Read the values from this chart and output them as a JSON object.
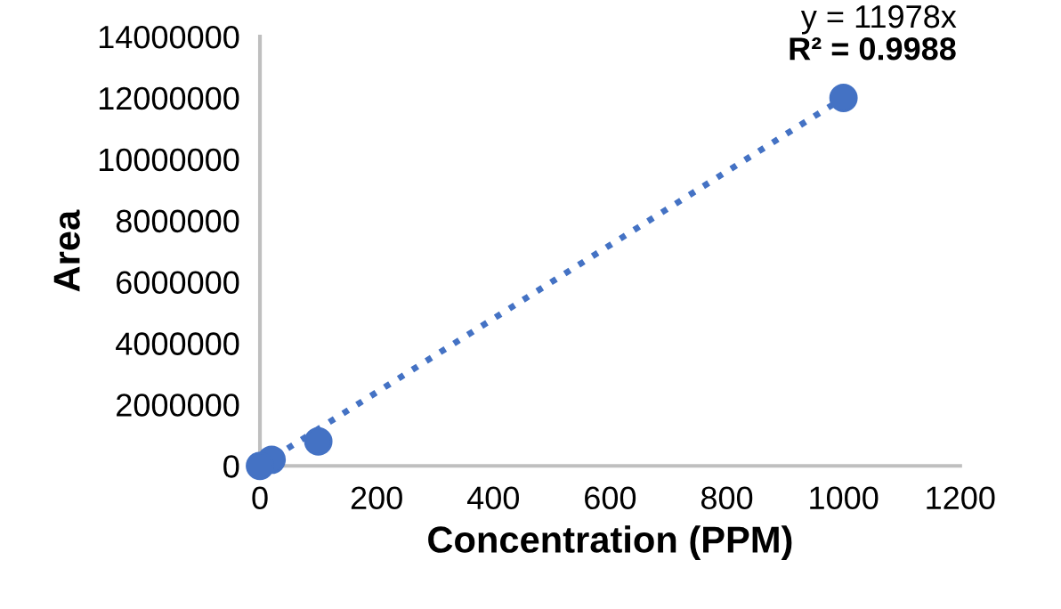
{
  "chart_data": {
    "type": "scatter",
    "xlabel": "Concentration (PPM)",
    "ylabel": "Area",
    "xlim": [
      0,
      1200
    ],
    "xticks": [
      0,
      200,
      400,
      600,
      800,
      1000,
      1200
    ],
    "ylim": [
      0,
      14000000
    ],
    "yticks": [
      0,
      2000000,
      4000000,
      6000000,
      8000000,
      10000000,
      12000000,
      14000000
    ],
    "grid": false,
    "legend": false,
    "series": [
      {
        "color": "#4472c4",
        "x": [
          0,
          20,
          100,
          1000
        ],
        "values": [
          0,
          200000,
          800000,
          12000000
        ]
      },
      {
        "type": "line",
        "color": "#4472c4",
        "line_style": "dotted",
        "x": [
          0,
          1000
        ],
        "values": [
          0,
          12000000
        ]
      }
    ],
    "annotations": [
      "y = 11978x",
      "R² = 0.9988"
    ]
  }
}
